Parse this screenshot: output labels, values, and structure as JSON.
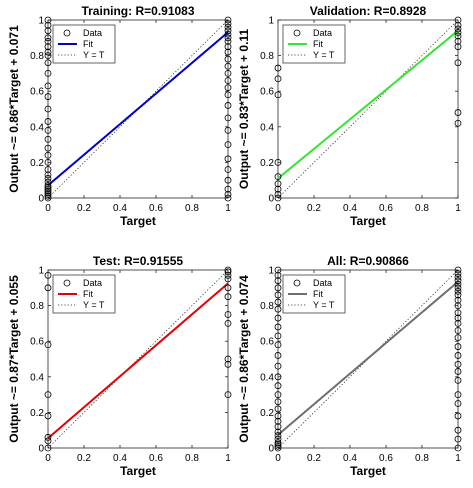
{
  "chart_data": [
    {
      "type": "scatter",
      "title": "Training: R=0.91083",
      "xlabel": "Target",
      "ylabel": "Output ~= 0.86*Target + 0.071",
      "xlim": [
        0,
        1
      ],
      "ylim": [
        0,
        1
      ],
      "xticks": [
        "0",
        "0.2",
        "0.4",
        "0.6",
        "0.8",
        "1"
      ],
      "yticks": [
        "0",
        "0.2",
        "0.4",
        "0.6",
        "0.8",
        "1"
      ],
      "fit": {
        "slope": 0.86,
        "intercept": 0.071,
        "color": "#0000c8",
        "name": "Fit"
      },
      "legend": {
        "placement": "top-left",
        "entries": [
          "Data",
          "Fit",
          "Y = T"
        ]
      },
      "grid": false,
      "points_target0": [
        0,
        0.01,
        0.02,
        0.03,
        0.04,
        0.05,
        0.06,
        0.07,
        0.09,
        0.11,
        0.13,
        0.16,
        0.2,
        0.24,
        0.28,
        0.33,
        0.38,
        0.43,
        0.5,
        0.57,
        0.63,
        0.7,
        0.76,
        0.8,
        0.82,
        0.85,
        0.88,
        0.9,
        0.94,
        0.97,
        1.0
      ],
      "points_target1": [
        0,
        0.02,
        0.05,
        0.1,
        0.16,
        0.22,
        0.3,
        0.38,
        0.45,
        0.52,
        0.58,
        0.62,
        0.66,
        0.7,
        0.74,
        0.78,
        0.82,
        0.85,
        0.88,
        0.9,
        0.92,
        0.94,
        0.96,
        0.98,
        1.0
      ]
    },
    {
      "type": "scatter",
      "title": "Validation: R=0.8928",
      "xlabel": "Target",
      "ylabel": "Output ~= 0.83*Target + 0.11",
      "xlim": [
        0,
        1
      ],
      "ylim": [
        0,
        1
      ],
      "xticks": [
        "0",
        "0.2",
        "0.4",
        "0.6",
        "0.8",
        "1"
      ],
      "yticks": [
        "0",
        "0.2",
        "0.4",
        "0.6",
        "0.8",
        "1"
      ],
      "fit": {
        "slope": 0.83,
        "intercept": 0.11,
        "color": "#33e633",
        "name": "Fit"
      },
      "legend": {
        "placement": "top-left",
        "entries": [
          "Data",
          "Fit",
          "Y = T"
        ]
      },
      "grid": false,
      "points_target0": [
        0,
        0.02,
        0.05,
        0.08,
        0.12,
        0.2,
        0.58,
        0.67,
        0.73
      ],
      "points_target1": [
        0.42,
        0.48,
        0.76,
        0.85,
        0.88,
        0.91,
        0.93,
        0.95,
        0.97,
        1.0
      ]
    },
    {
      "type": "scatter",
      "title": "Test: R=0.91555",
      "xlabel": "Target",
      "ylabel": "Output ~= 0.87*Target + 0.055",
      "xlim": [
        0,
        1
      ],
      "ylim": [
        0,
        1
      ],
      "xticks": [
        "0",
        "0.2",
        "0.4",
        "0.6",
        "0.8",
        "1"
      ],
      "yticks": [
        "0",
        "0.2",
        "0.4",
        "0.6",
        "0.8",
        "1"
      ],
      "fit": {
        "slope": 0.87,
        "intercept": 0.055,
        "color": "#e60000",
        "name": "Fit"
      },
      "legend": {
        "placement": "top-left",
        "entries": [
          "Data",
          "Fit",
          "Y = T"
        ]
      },
      "grid": false,
      "points_target0": [
        0,
        0.04,
        0.06,
        0.18,
        0.3,
        0.58,
        0.9,
        0.97
      ],
      "points_target1": [
        0.3,
        0.47,
        0.5,
        0.7,
        0.75,
        0.85,
        0.9,
        0.95,
        0.97,
        0.99,
        1.0
      ]
    },
    {
      "type": "scatter",
      "title": "All: R=0.90866",
      "xlabel": "Target",
      "ylabel": "Output ~= 0.86*Target + 0.074",
      "xlim": [
        0,
        1
      ],
      "ylim": [
        0,
        1
      ],
      "xticks": [
        "0",
        "0.2",
        "0.4",
        "0.6",
        "0.8",
        "1"
      ],
      "yticks": [
        "0",
        "0.2",
        "0.4",
        "0.6",
        "0.8",
        "1"
      ],
      "fit": {
        "slope": 0.86,
        "intercept": 0.074,
        "color": "#6e6e6e",
        "name": "Fit"
      },
      "legend": {
        "placement": "top-left",
        "entries": [
          "Data",
          "Fit",
          "Y = T"
        ]
      },
      "grid": false,
      "points_target0": [
        0,
        0.01,
        0.02,
        0.03,
        0.05,
        0.07,
        0.09,
        0.12,
        0.15,
        0.18,
        0.22,
        0.26,
        0.3,
        0.35,
        0.4,
        0.46,
        0.52,
        0.58,
        0.63,
        0.68,
        0.73,
        0.78,
        0.82,
        0.86,
        0.9,
        0.94,
        0.97,
        1.0
      ],
      "points_target1": [
        0,
        0.05,
        0.1,
        0.18,
        0.25,
        0.3,
        0.38,
        0.43,
        0.47,
        0.52,
        0.57,
        0.62,
        0.66,
        0.7,
        0.73,
        0.76,
        0.8,
        0.83,
        0.86,
        0.88,
        0.9,
        0.92,
        0.94,
        0.96,
        0.98,
        1.0
      ]
    }
  ]
}
